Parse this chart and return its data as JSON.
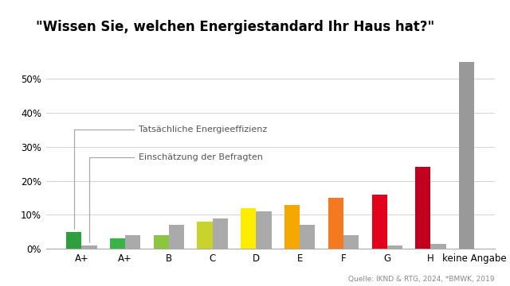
{
  "title": "\"Wissen Sie, welchen Energiestandard Ihr Haus hat?\"",
  "categories": [
    "A+",
    "A+",
    "B",
    "C",
    "D",
    "E",
    "F",
    "G",
    "H",
    "keine Angabe"
  ],
  "actual": [
    5.0,
    3.0,
    4.0,
    8.0,
    12.0,
    13.0,
    15.0,
    16.0,
    24.0,
    55.0
  ],
  "estimated": [
    1.0,
    4.0,
    7.0,
    9.0,
    11.0,
    7.0,
    4.0,
    1.0,
    1.5,
    null
  ],
  "bar_colors_actual": [
    "#2e9e3e",
    "#3cb34a",
    "#8cc53f",
    "#c8d42e",
    "#ffed00",
    "#f4a800",
    "#f47920",
    "#e2001a",
    "#c1001f",
    "#999999"
  ],
  "bar_color_estimated": "#aaaaaa",
  "yticks": [
    0,
    10,
    20,
    30,
    40,
    50
  ],
  "ytick_labels": [
    "0%",
    "10%",
    "20%",
    "30%",
    "40%",
    "50%"
  ],
  "ylim": [
    0,
    58
  ],
  "source_text": "Quelle: IKND & RTG, 2024, *BMWK, 2019",
  "annotation_actual": "Tatsächliche Energieeffizienz",
  "annotation_estimated": "Einschätzung der Befragten",
  "background_color": "#ffffff"
}
